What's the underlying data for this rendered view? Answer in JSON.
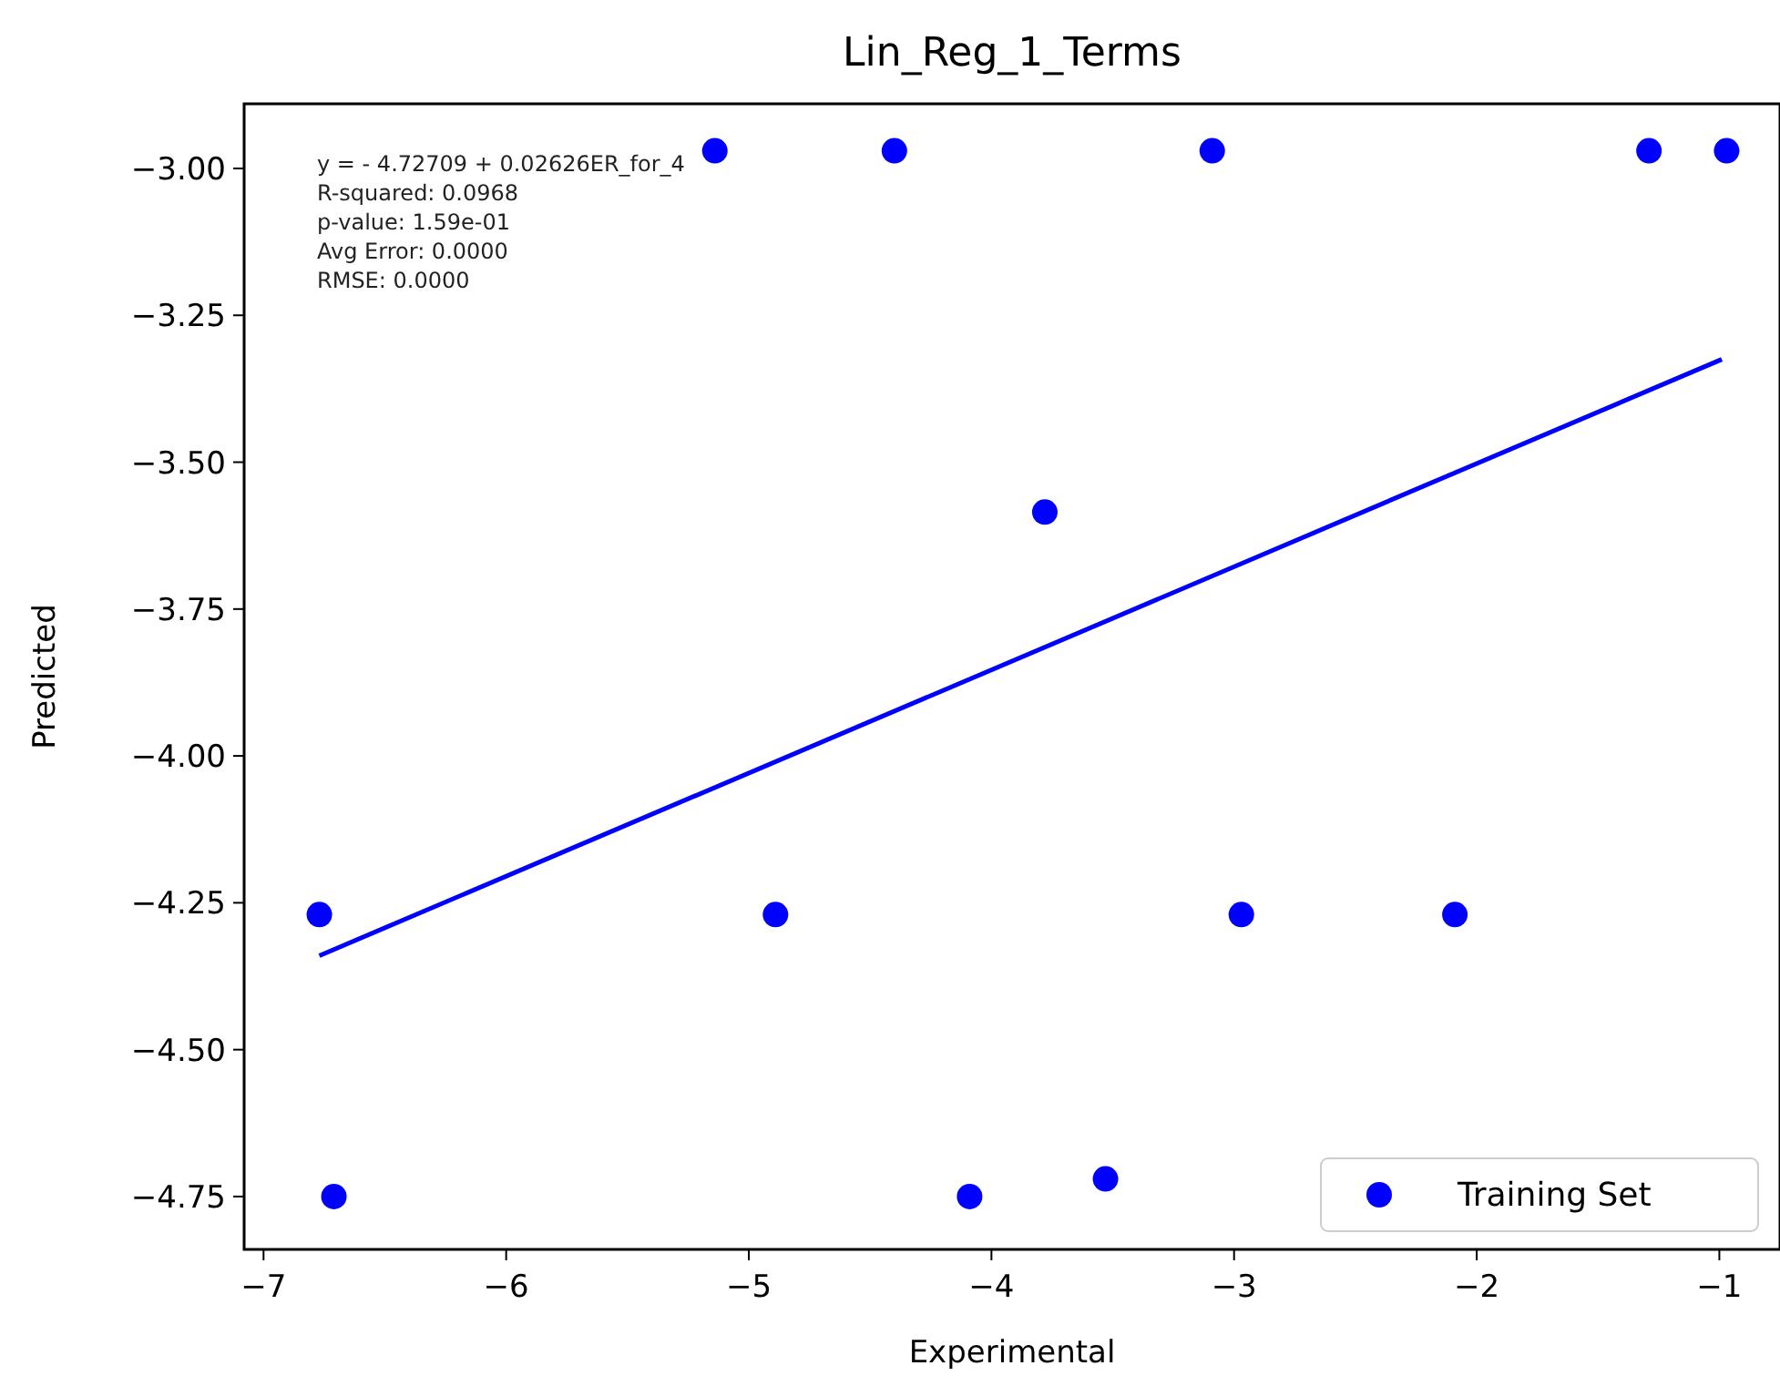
{
  "chart_data": {
    "type": "scatter",
    "title": "Lin_Reg_1_Terms",
    "xlabel": "Experimental",
    "ylabel": "Predicted",
    "annotations": [
      "y =  - 4.72709 + 0.02626ER_for_4",
      "R-squared: 0.0968",
      "p-value: 1.59e-01",
      "Avg Error: 0.0000",
      "RMSE: 0.0000"
    ],
    "xlim": [
      -7.08,
      -0.75
    ],
    "xticks": [
      {
        "value": -7,
        "label": "−7"
      },
      {
        "value": -6,
        "label": "−6"
      },
      {
        "value": -5,
        "label": "−5"
      },
      {
        "value": -4,
        "label": "−4"
      },
      {
        "value": -3,
        "label": "−3"
      },
      {
        "value": -2,
        "label": "−2"
      },
      {
        "value": -1,
        "label": "−1"
      }
    ],
    "ylim": [
      -4.84,
      -2.89
    ],
    "yticks": [
      {
        "value": -3,
        "label": "−3.00"
      },
      {
        "value": -3.25,
        "label": "−3.25"
      },
      {
        "value": -3.5,
        "label": "−3.50"
      },
      {
        "value": -3.75,
        "label": "−3.75"
      },
      {
        "value": -4,
        "label": "−4.00"
      },
      {
        "value": -4.25,
        "label": "−4.25"
      },
      {
        "value": -4.5,
        "label": "−4.50"
      },
      {
        "value": -4.75,
        "label": "−4.75"
      }
    ],
    "legend": "bottom right",
    "grid": false,
    "series": [
      {
        "name": "Training Set",
        "marker": "circle",
        "color": "#0000ff",
        "x": [
          -6.77,
          -6.71,
          -5.14,
          -4.4,
          -3.09,
          -1.29,
          -0.97,
          -3.78,
          -4.89,
          -2.97,
          -2.09,
          -4.09,
          -3.53
        ],
        "values": [
          -4.27,
          -4.75,
          -2.97,
          -2.97,
          -2.97,
          -2.97,
          -2.97,
          -3.585,
          -4.27,
          -4.27,
          -4.27,
          -4.75,
          -4.72
        ]
      },
      {
        "type": "line",
        "color": "#0000ff",
        "line_style": "solid",
        "x": [
          -6.77,
          -0.99
        ],
        "values": [
          -4.34,
          -3.325
        ]
      }
    ]
  }
}
